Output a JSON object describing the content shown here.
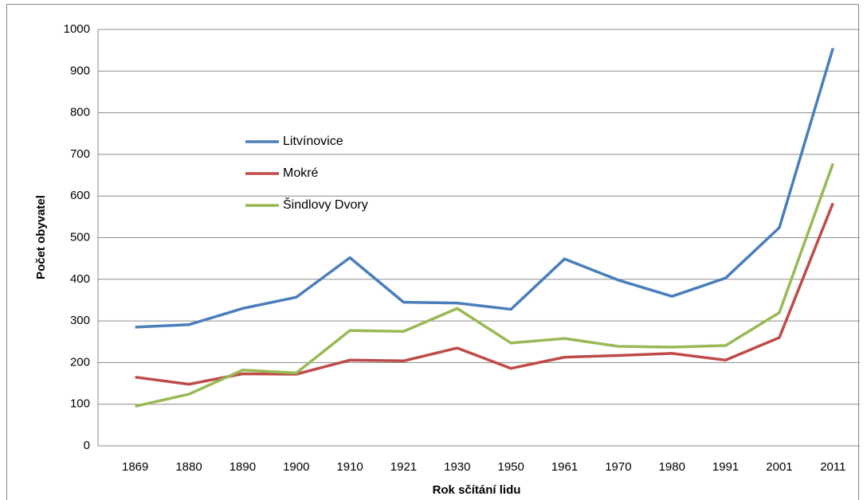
{
  "chart_data": {
    "type": "line",
    "y_label": "Počet obyvatel",
    "x_label": "Rok sčítání lidu",
    "categories": [
      "1869",
      "1880",
      "1890",
      "1900",
      "1910",
      "1921",
      "1930",
      "1950",
      "1961",
      "1970",
      "1980",
      "1991",
      "2001",
      "2011"
    ],
    "series": [
      {
        "name": "Litvínovice",
        "color": "#4a7ebb",
        "values": [
          285,
          291,
          330,
          357,
          452,
          345,
          343,
          328,
          449,
          398,
          359,
          403,
          524,
          955
        ]
      },
      {
        "name": "Mokré",
        "color": "#be4b48",
        "values": [
          165,
          148,
          173,
          172,
          206,
          204,
          235,
          186,
          213,
          217,
          222,
          206,
          260,
          583
        ]
      },
      {
        "name": "Šindlovy Dvory",
        "color": "#98b954",
        "values": [
          95,
          124,
          182,
          175,
          277,
          275,
          330,
          247,
          258,
          239,
          237,
          241,
          320,
          678
        ]
      }
    ],
    "ylim": [
      0,
      1000
    ],
    "yticks": [
      0,
      100,
      200,
      300,
      400,
      500,
      600,
      700,
      800,
      900,
      1000
    ],
    "grid": true,
    "legend": "upper left"
  }
}
